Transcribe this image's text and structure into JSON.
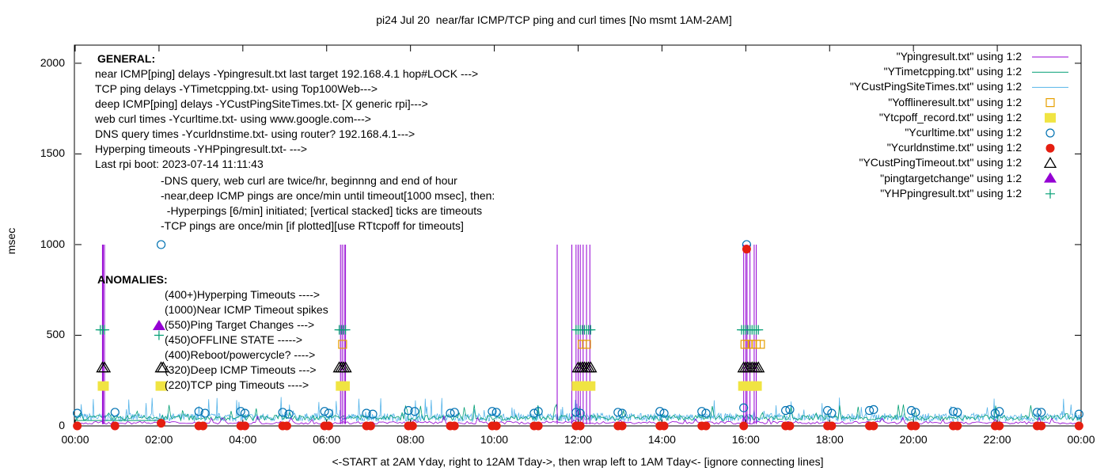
{
  "colors": {
    "pingresult": "#9400d3",
    "timetcpping": "#009e73",
    "custping": "#56b4e9",
    "offline": "#e69f00",
    "tcpoff": "#f0e442",
    "curltime": "#0072b2",
    "curldns": "#e51e10",
    "custtimeout": "#000000",
    "targetchange": "#9400d3",
    "hpping": "#009e73"
  },
  "chart_data": {
    "type": "scatter",
    "title": "pi24 Jul 20  near/far ICMP/TCP ping and curl times [No msmt 1AM-2AM]",
    "xlabel": "<-START at 2AM Yday, right to 12AM Tday->, then wrap left to 1AM Tday<- [ignore connecting lines]",
    "ylabel": "msec",
    "xlim": [
      0,
      24
    ],
    "ylim": [
      0,
      2100
    ],
    "x_tick_labels": [
      "00:00",
      "02:00",
      "04:00",
      "06:00",
      "08:00",
      "10:00",
      "12:00",
      "14:00",
      "16:00",
      "18:00",
      "20:00",
      "22:00",
      "00:00"
    ],
    "y_tick_labels": [
      "0",
      "500",
      "1000",
      "1500",
      "2000"
    ],
    "y_ticks": [
      0,
      500,
      1000,
      1500,
      2000
    ],
    "grid": false,
    "legend_position": "top-right",
    "legend": [
      "\"Ypingresult.txt\" using 1:2",
      "\"YTimetcpping.txt\" using 1:2",
      "\"YCustPingSiteTimes.txt\" using 1:2",
      "\"Yofflineresult.txt\" using 1:2",
      "\"Ytcpoff_record.txt\" using 1:2",
      "\"Ycurltime.txt\" using 1:2",
      "\"Ycurldnstime.txt\" using 1:2",
      "\"YCustPingTimeout.txt\" using 1:2",
      "\"pingtargetchange\" using 1:2",
      "\"YHPpingresult.txt\" using 1:2"
    ],
    "series": [
      {
        "name": "\"Ypingresult.txt\" using 1:2",
        "style": "line",
        "spikes_x": [
          0.65,
          0.67,
          0.7,
          6.33,
          6.37,
          6.42,
          6.45,
          11.5,
          11.85,
          11.95,
          12.0,
          12.05,
          12.12,
          12.2,
          12.28,
          15.95,
          16.0,
          16.03,
          16.1,
          16.2,
          16.25
        ],
        "spike_y": 1000,
        "baseline_y": 10
      },
      {
        "name": "\"YTimetcpping.txt\" using 1:2",
        "style": "line",
        "baseline_y": 30
      },
      {
        "name": "\"YCustPingSiteTimes.txt\" using 1:2",
        "style": "line",
        "baseline_y": 25
      },
      {
        "name": "\"Yofflineresult.txt\" using 1:2",
        "style": "open-square",
        "x": [
          6.38,
          12.1,
          12.2,
          15.98,
          16.05,
          16.15,
          16.25,
          16.35
        ],
        "y": [
          450,
          450,
          450,
          450,
          450,
          450,
          450,
          450
        ]
      },
      {
        "name": "\"Ytcpoff_record.txt\" using 1:2",
        "style": "filled-square",
        "x": [
          0.67,
          2.05,
          6.35,
          6.42,
          11.98,
          12.05,
          12.12,
          12.2,
          12.28,
          15.95,
          16.02,
          16.1,
          16.18,
          16.25
        ],
        "y": [
          220,
          220,
          220,
          220,
          220,
          220,
          220,
          220,
          220,
          220,
          220,
          220,
          220,
          220
        ]
      },
      {
        "name": "\"Ycurltime.txt\" using 1:2",
        "style": "open-circle",
        "x": [
          0.05,
          0.95,
          2.05,
          2.95,
          3.1,
          3.95,
          4.05,
          4.95,
          5.1,
          5.95,
          6.05,
          6.95,
          7.1,
          7.95,
          8.1,
          8.95,
          9.05,
          9.95,
          10.05,
          10.95,
          11.05,
          11.95,
          12.05,
          12.95,
          13.05,
          13.95,
          14.05,
          14.95,
          15.05,
          15.95,
          16.02,
          16.95,
          17.05,
          17.95,
          18.05,
          18.95,
          19.05,
          19.95,
          20.05,
          20.95,
          21.05,
          21.95,
          22.05,
          22.95,
          23.05,
          23.95
        ],
        "y": [
          70,
          75,
          1000,
          80,
          70,
          80,
          70,
          75,
          65,
          80,
          70,
          70,
          65,
          85,
          80,
          70,
          75,
          80,
          75,
          70,
          80,
          75,
          70,
          75,
          70,
          80,
          70,
          80,
          70,
          100,
          1000,
          85,
          90,
          85,
          70,
          85,
          90,
          85,
          75,
          80,
          75,
          70,
          80,
          75,
          75,
          65
        ]
      },
      {
        "name": "\"Ycurldnstime.txt\" using 1:2",
        "style": "filled-circle",
        "x": [
          0.05,
          0.95,
          2.05,
          2.95,
          3.05,
          3.95,
          4.05,
          4.95,
          5.05,
          5.95,
          6.05,
          6.95,
          7.05,
          7.95,
          8.05,
          8.95,
          9.05,
          9.95,
          10.05,
          10.95,
          11.05,
          11.95,
          12.05,
          12.95,
          13.05,
          13.95,
          14.05,
          14.95,
          15.05,
          15.95,
          16.02,
          16.95,
          17.05,
          17.95,
          18.05,
          18.95,
          19.05,
          19.95,
          20.05,
          20.95,
          21.05,
          21.95,
          22.05,
          22.95,
          23.05,
          23.95
        ],
        "y": [
          0,
          0,
          15,
          0,
          0,
          0,
          0,
          0,
          0,
          0,
          0,
          0,
          0,
          0,
          0,
          0,
          0,
          0,
          0,
          0,
          0,
          0,
          0,
          0,
          0,
          0,
          0,
          0,
          0,
          0,
          975,
          0,
          0,
          0,
          0,
          0,
          0,
          0,
          0,
          0,
          0,
          0,
          0,
          0,
          0,
          0
        ]
      },
      {
        "name": "\"YCustPingTimeout.txt\" using 1:2",
        "style": "open-triangle",
        "x": [
          0.65,
          0.7,
          2.05,
          2.1,
          6.3,
          6.35,
          6.4,
          6.45,
          12.0,
          12.05,
          12.1,
          12.15,
          12.2,
          12.25,
          12.3,
          15.95,
          16.0,
          16.05,
          16.1,
          16.15,
          16.2,
          16.25,
          16.3
        ],
        "y": [
          320,
          320,
          320,
          320,
          320,
          320,
          320,
          320,
          320,
          320,
          320,
          320,
          320,
          320,
          320,
          320,
          320,
          320,
          320,
          320,
          320,
          320,
          320
        ]
      },
      {
        "name": "\"pingtargetchange\" using 1:2",
        "style": "filled-triangle",
        "x": [
          2.0
        ],
        "y": [
          550
        ]
      },
      {
        "name": "\"YHPpingresult.txt\" using 1:2",
        "style": "plus",
        "x": [
          0.6,
          0.65,
          0.7,
          2.0,
          6.3,
          6.35,
          6.4,
          6.45,
          11.95,
          12.0,
          12.05,
          12.1,
          12.15,
          12.2,
          12.25,
          12.3,
          15.9,
          15.95,
          16.0,
          16.05,
          16.1,
          16.15,
          16.2,
          16.25,
          16.3
        ],
        "y": [
          530,
          530,
          530,
          500,
          530,
          530,
          530,
          530,
          530,
          530,
          530,
          530,
          530,
          530,
          530,
          530,
          530,
          530,
          530,
          530,
          530,
          530,
          530,
          530,
          530
        ]
      }
    ]
  },
  "notes": {
    "general_heading": "GENERAL:",
    "general_lines": [
      "near ICMP[ping] delays -Ypingresult.txt last target 192.168.4.1 hop#LOCK --->",
      "TCP ping delays -YTimetcpping.txt- using Top100Web--->",
      "deep ICMP[ping] delays -YCustPingSiteTimes.txt- [X generic rpi]--->",
      "web curl times -Ycurltime.txt- using www.google.com--->",
      "DNS query times -Ycurldnstime.txt- using router? 192.168.4.1--->",
      "Hyperping timeouts -YHPpingresult.txt- --->",
      "Last rpi boot: 2023-07-14 11:11:43"
    ],
    "detail_lines": [
      "-DNS query, web curl are twice/hr, beginnng and end of hour",
      "-near,deep ICMP pings are once/min until timeout[1000 msec], then:",
      "  -Hyperpings [6/min] initiated; [vertical stacked] ticks are timeouts",
      "-TCP pings are once/min [if plotted][use RTtcpoff for timeouts]"
    ],
    "anomalies_heading": "ANOMALIES:",
    "anomaly_lines": [
      "(400+)Hyperping Timeouts ---->",
      "(1000)Near ICMP Timeout spikes",
      "(550)Ping Target Changes --->",
      "(450)OFFLINE STATE ----->",
      "(400)Reboot/powercycle? ---->",
      "(320)Deep ICMP Timeouts --->",
      "(220)TCP ping Timeouts ---->"
    ]
  }
}
